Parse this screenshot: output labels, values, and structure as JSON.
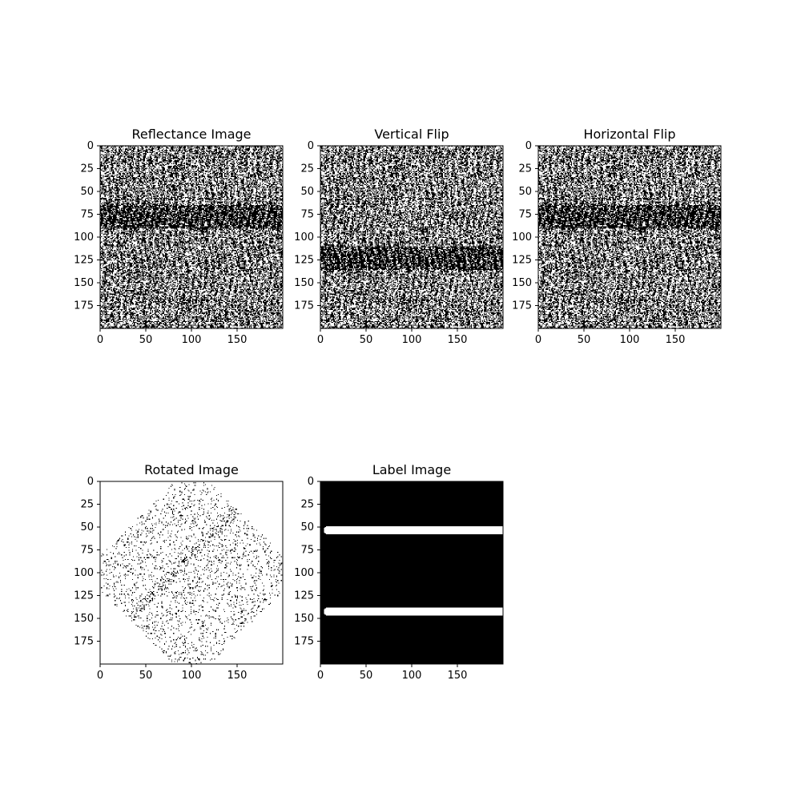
{
  "chart_data": [
    {
      "type": "heatmap",
      "title": "Reflectance Image",
      "image": "binary-noise",
      "xticks": [
        0,
        50,
        100,
        150
      ],
      "yticks": [
        0,
        25,
        50,
        75,
        100,
        125,
        150,
        175
      ],
      "xlim": [
        0,
        200
      ],
      "ylim": [
        200,
        0
      ],
      "dark_band_rows": [
        65,
        90
      ]
    },
    {
      "type": "heatmap",
      "title": "Vertical Flip",
      "image": "binary-noise",
      "xticks": [
        0,
        50,
        100,
        150
      ],
      "yticks": [
        0,
        25,
        50,
        75,
        100,
        125,
        150,
        175
      ],
      "xlim": [
        0,
        200
      ],
      "ylim": [
        200,
        0
      ],
      "dark_band_rows": [
        110,
        135
      ]
    },
    {
      "type": "heatmap",
      "title": "Horizontal Flip",
      "image": "binary-noise",
      "xticks": [
        0,
        50,
        100,
        150
      ],
      "yticks": [
        0,
        25,
        50,
        75,
        100,
        125,
        150,
        175
      ],
      "xlim": [
        0,
        200
      ],
      "ylim": [
        200,
        0
      ],
      "dark_band_rows": [
        65,
        90
      ]
    },
    {
      "type": "heatmap",
      "title": "Rotated Image",
      "image": "rotated-sparse",
      "xticks": [
        0,
        50,
        100,
        150
      ],
      "yticks": [
        0,
        25,
        50,
        75,
        100,
        125,
        150,
        175
      ],
      "xlim": [
        0,
        200
      ],
      "ylim": [
        200,
        0
      ]
    },
    {
      "type": "heatmap",
      "title": "Label Image",
      "image": "label-bands",
      "xticks": [
        0,
        50,
        100,
        150
      ],
      "yticks": [
        0,
        25,
        50,
        75,
        100,
        125,
        150,
        175
      ],
      "xlim": [
        0,
        200
      ],
      "ylim": [
        200,
        0
      ],
      "bands": [
        {
          "row_center": 53,
          "x_start": 8,
          "x_end": 200
        },
        {
          "row_center": 142,
          "x_start": 8,
          "x_end": 200
        }
      ]
    }
  ]
}
